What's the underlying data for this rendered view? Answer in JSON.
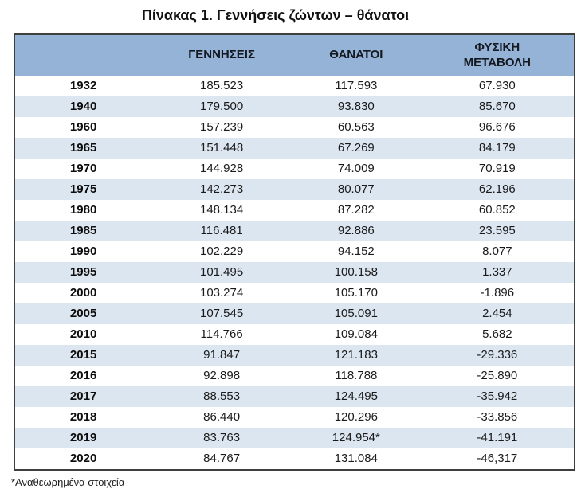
{
  "title": "Πίνακας 1. Γεννήσεις ζώντων – θάνατοι",
  "footnote": "*Αναθεωρημένα στοιχεία",
  "colors": {
    "header_bg": "#95B3D7",
    "band_bg": "#DCE6F1",
    "border": "#3F3F3F",
    "text": "#1A1A1A"
  },
  "table": {
    "columns": [
      "",
      "ΓΕΝΝΗΣΕΙΣ",
      "ΘΑΝΑΤΟΙ",
      "ΦΥΣΙΚΗ ΜΕΤΑΒΟΛΗ"
    ],
    "rows": [
      {
        "year": "1932",
        "births": "185.523",
        "deaths": "117.593",
        "change": "67.930"
      },
      {
        "year": "1940",
        "births": "179.500",
        "deaths": "93.830",
        "change": "85.670"
      },
      {
        "year": "1960",
        "births": "157.239",
        "deaths": "60.563",
        "change": "96.676"
      },
      {
        "year": "1965",
        "births": "151.448",
        "deaths": "67.269",
        "change": "84.179"
      },
      {
        "year": "1970",
        "births": "144.928",
        "deaths": "74.009",
        "change": "70.919"
      },
      {
        "year": "1975",
        "births": "142.273",
        "deaths": "80.077",
        "change": "62.196"
      },
      {
        "year": "1980",
        "births": "148.134",
        "deaths": "87.282",
        "change": "60.852"
      },
      {
        "year": "1985",
        "births": "116.481",
        "deaths": "92.886",
        "change": "23.595"
      },
      {
        "year": "1990",
        "births": "102.229",
        "deaths": "94.152",
        "change": "8.077"
      },
      {
        "year": "1995",
        "births": "101.495",
        "deaths": "100.158",
        "change": "1.337"
      },
      {
        "year": "2000",
        "births": "103.274",
        "deaths": "105.170",
        "change": "-1.896"
      },
      {
        "year": "2005",
        "births": "107.545",
        "deaths": "105.091",
        "change": "2.454"
      },
      {
        "year": "2010",
        "births": "114.766",
        "deaths": "109.084",
        "change": "5.682"
      },
      {
        "year": "2015",
        "births": "91.847",
        "deaths": "121.183",
        "change": "-29.336"
      },
      {
        "year": "2016",
        "births": "92.898",
        "deaths": "118.788",
        "change": "-25.890"
      },
      {
        "year": "2017",
        "births": "88.553",
        "deaths": "124.495",
        "change": "-35.942"
      },
      {
        "year": "2018",
        "births": "86.440",
        "deaths": "120.296",
        "change": "-33.856"
      },
      {
        "year": "2019",
        "births": "83.763",
        "deaths": "124.954*",
        "change": "-41.191"
      },
      {
        "year": "2020",
        "births": "84.767",
        "deaths": "131.084",
        "change": "-46,317"
      }
    ]
  }
}
